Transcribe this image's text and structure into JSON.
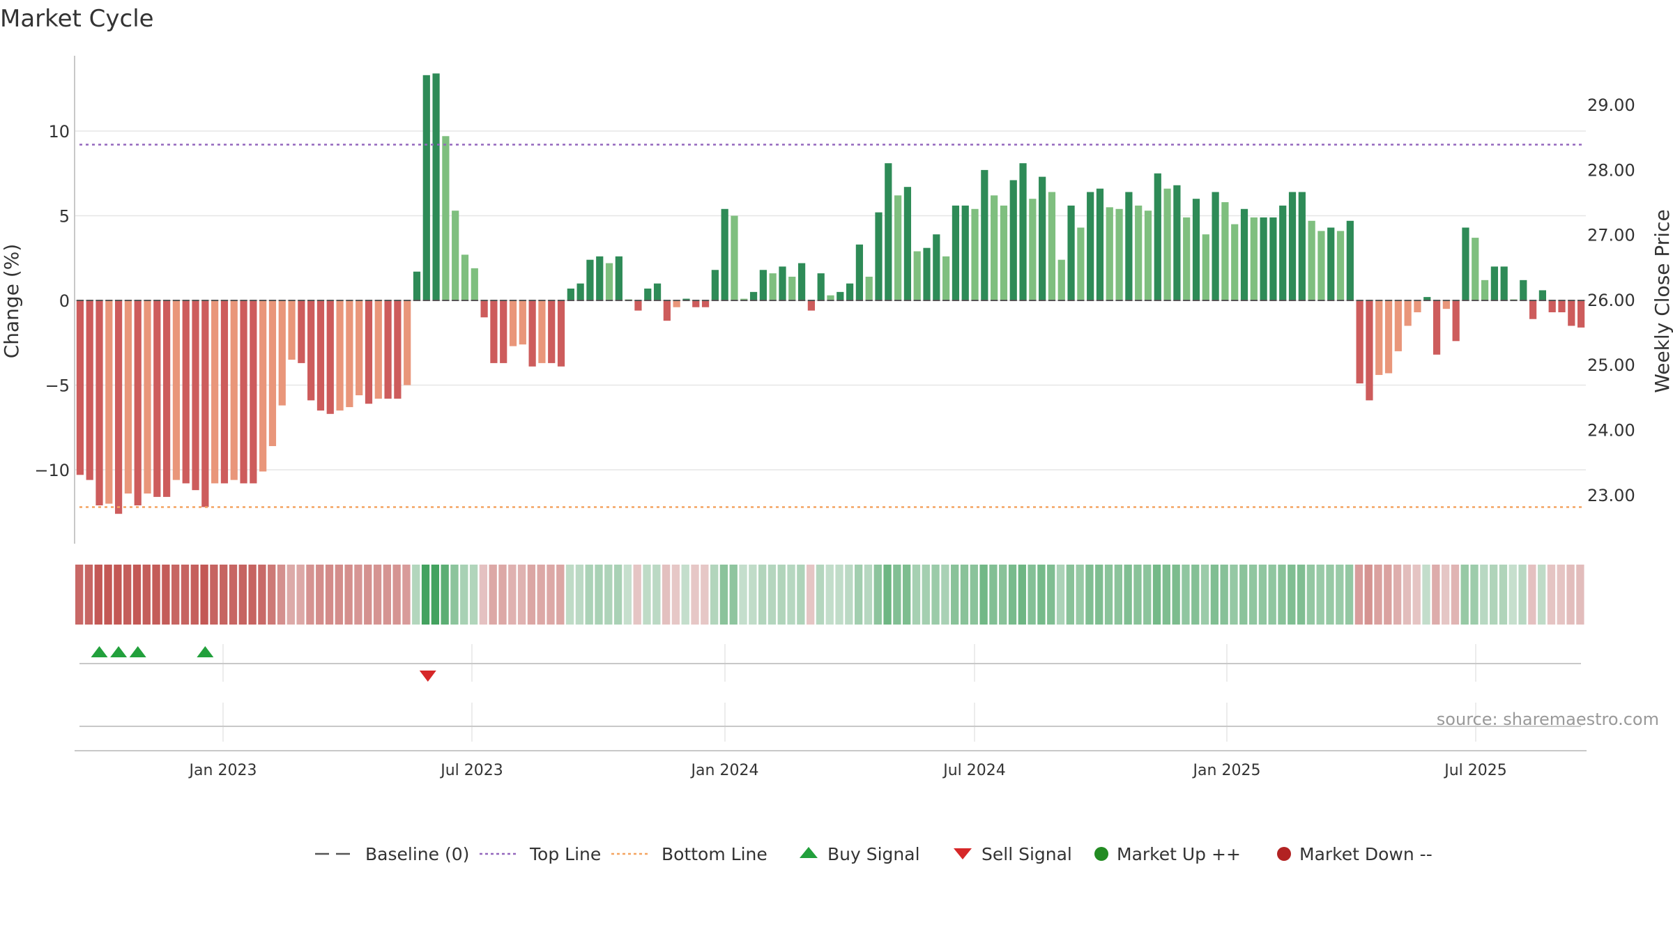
{
  "title": "Market Cycle",
  "source": "source: sharemaestro.com",
  "colors": {
    "up_strong": "#2e8b57",
    "up_light": "#7fbf7f",
    "down_strong": "#cd5c5c",
    "down_light": "#e9967a",
    "top_line": "#9467bd",
    "bottom_line": "#f4a460",
    "baseline": "#555555",
    "buy": "#22a03c",
    "sell": "#d62728",
    "market_up": "#228b22",
    "market_down": "#b22222",
    "grid": "#e6e6e6",
    "axis": "#c8c8c8",
    "text": "#333333"
  },
  "legend": [
    {
      "label": "Baseline (0)",
      "icon": "dash-line"
    },
    {
      "label": "Top Line",
      "icon": "dotted-purple-line"
    },
    {
      "label": "Bottom Line",
      "icon": "dotted-orange-line"
    },
    {
      "label": "Buy Signal",
      "icon": "triangle-up-green"
    },
    {
      "label": "Sell Signal",
      "icon": "triangle-down-red"
    },
    {
      "label": "Market Up ++",
      "icon": "circle-green"
    },
    {
      "label": "Market Down --",
      "icon": "circle-red"
    }
  ],
  "chart_data": {
    "type": "bar",
    "title": "Market Cycle",
    "ylabel": "Change (%)",
    "y2label": "Weekly Close Price",
    "ylim": [
      -14.5,
      14.5
    ],
    "yticks": [
      -10,
      -5,
      0,
      5,
      10
    ],
    "ytick_labels": [
      "−10",
      "−5",
      "0",
      "5",
      "10"
    ],
    "y2ticks": [
      "23.00",
      "24.00",
      "25.00",
      "26.00",
      "27.00",
      "28.00",
      "29.00"
    ],
    "xtick_labels": [
      "Jan 2023",
      "Jul 2023",
      "Jan 2024",
      "Jul 2024",
      "Jan 2025",
      "Jul 2025"
    ],
    "top_line": 9.2,
    "bottom_line": -12.2,
    "grid": true,
    "legend_position": "bottom",
    "series": [
      {
        "values": [
          -10.3,
          -10.6,
          -12.1,
          -12.0,
          -12.6,
          -11.4,
          -12.1,
          -11.4,
          -11.6,
          -11.6,
          -10.6,
          -10.8,
          -11.2,
          -12.2,
          -10.8,
          -10.8,
          -10.6,
          -10.8,
          -10.8,
          -10.1,
          -8.6,
          -6.2,
          -3.5,
          -3.7,
          -5.9,
          -6.5,
          -6.7,
          -6.5,
          -6.3,
          -5.6,
          -6.1,
          -5.8,
          -5.8,
          -5.8,
          -5.0,
          1.7,
          13.3,
          13.4,
          9.7,
          5.3,
          2.7,
          1.9,
          -1.0,
          -3.7,
          -3.7,
          -2.7,
          -2.6,
          -3.9,
          -3.7,
          -3.7,
          -3.9,
          0.7,
          1.0,
          2.4,
          2.6,
          2.2,
          2.6,
          0,
          -0.6,
          0.7,
          1.0,
          -1.2,
          -0.4,
          0.1,
          -0.4,
          -0.4,
          1.8,
          5.4,
          5.0,
          0.1,
          0.5,
          1.8,
          1.6,
          2.0,
          1.4,
          2.2,
          -0.6,
          1.6,
          0.3,
          0.5,
          1.0,
          3.3,
          1.4,
          5.2,
          8.1,
          6.2,
          6.7,
          2.9,
          3.1,
          3.9,
          2.6,
          5.6,
          5.6,
          5.4,
          7.7,
          6.2,
          5.6,
          7.1,
          8.1,
          6.0,
          7.3,
          6.4,
          2.4,
          5.6,
          4.3,
          6.4,
          6.6,
          5.5,
          5.4,
          6.4,
          5.6,
          5.3,
          7.5,
          6.6,
          6.8,
          4.9,
          6.0,
          3.9,
          6.4,
          5.8,
          4.5,
          5.4,
          4.9,
          4.9,
          4.9,
          5.6,
          6.4,
          6.4,
          4.7,
          4.1,
          4.3,
          4.1,
          4.7,
          -4.9,
          -5.9,
          -4.4,
          -4.3,
          -3.0,
          -1.5,
          -0.7,
          0.2,
          -3.2,
          -0.5,
          -2.4,
          4.3,
          3.7,
          1.2,
          2.0,
          2.0,
          0,
          1.2,
          -1.1,
          0.6,
          -0.7,
          -0.7,
          -1.5,
          -1.6
        ]
      }
    ],
    "signals": {
      "buy_bar_indices": [
        2,
        4,
        6,
        13
      ],
      "sell_bar_indices": [
        36
      ]
    }
  }
}
